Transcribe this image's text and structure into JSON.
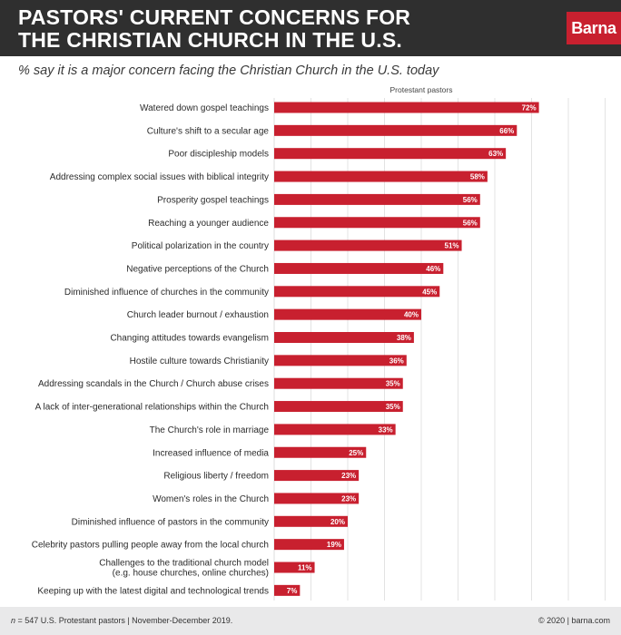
{
  "header": {
    "title_line1": "PASTORS' CURRENT CONCERNS FOR",
    "title_line2": "THE CHRISTIAN CHURCH IN THE U.S.",
    "logo": "Barna"
  },
  "subtitle": "% say it is a major concern facing the Christian Church in the U.S. today",
  "colors": {
    "bar": "#c8202f",
    "header_bg": "#2f2f2f",
    "footer_bg": "#e9e9ea",
    "gridline": "#dcdcdc"
  },
  "chart_data": {
    "type": "bar",
    "orientation": "horizontal",
    "column_header": "Protestant pastors",
    "xlim": [
      0,
      100
    ],
    "grid": true,
    "value_suffix": "%",
    "categories": [
      "Watered down gospel teachings",
      "Culture's shift to a secular age",
      "Poor discipleship models",
      "Addressing complex social issues with biblical integrity",
      "Prosperity gospel teachings",
      "Reaching a younger audience",
      "Political polarization in the country",
      "Negative perceptions of the Church",
      "Diminished influence of churches in the community",
      "Church leader burnout / exhaustion",
      "Changing attitudes towards evangelism",
      "Hostile culture towards Christianity",
      "Addressing scandals in the Church / Church abuse crises",
      "A lack of inter-generational relationships within the Church",
      "The Church's role in marriage",
      "Increased influence of media",
      "Religious liberty / freedom",
      "Women's roles in the Church",
      "Diminished influence of pastors in the community",
      "Celebrity pastors pulling people away from the local church",
      "Challenges to the traditional church model\n(e.g. house churches, online churches)",
      "Keeping up with the latest digital and technological trends"
    ],
    "series": [
      {
        "name": "Protestant pastors",
        "values": [
          72,
          66,
          63,
          58,
          56,
          56,
          51,
          46,
          45,
          40,
          38,
          36,
          35,
          35,
          33,
          25,
          23,
          23,
          20,
          19,
          11,
          7
        ]
      }
    ]
  },
  "footer": {
    "n_label": "n",
    "note": " = 547 U.S. Protestant pastors | November-December 2019.",
    "copyright": "© 2020 | barna.com"
  }
}
